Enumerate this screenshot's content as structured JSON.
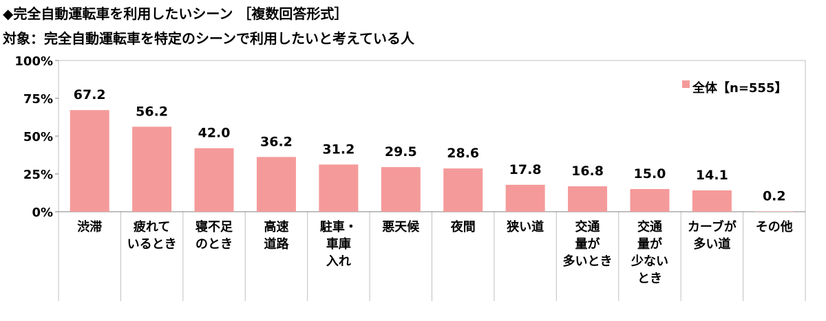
{
  "header": {
    "title": "◆完全自動運転車を利用したいシーン ［複数回答形式］",
    "subtitle": "対象：完全自動運転車を特定のシーンで利用したいと考えている人"
  },
  "chart_data": {
    "type": "bar",
    "categories": [
      [
        "渋滞"
      ],
      [
        "疲れて",
        "いるとき"
      ],
      [
        "寝不足",
        "のとき"
      ],
      [
        "高速",
        "道路"
      ],
      [
        "駐車・",
        "車庫",
        "入れ"
      ],
      [
        "悪天候"
      ],
      [
        "夜間"
      ],
      [
        "狭い道"
      ],
      [
        "交通",
        "量が",
        "多いとき"
      ],
      [
        "交通",
        "量が",
        "少ない",
        "とき"
      ],
      [
        "カーブが",
        "多い道"
      ],
      [
        "その他"
      ]
    ],
    "series": [
      {
        "name": "全体【n=555】",
        "values": [
          67.2,
          56.2,
          42.0,
          36.2,
          31.2,
          29.5,
          28.6,
          17.8,
          16.8,
          15.0,
          14.1,
          0.2
        ]
      }
    ],
    "data_labels": [
      "67.2",
      "56.2",
      "42.0",
      "36.2",
      "31.2",
      "29.5",
      "28.6",
      "17.8",
      "16.8",
      "15.0",
      "14.1",
      "0.2"
    ],
    "y_ticks": [
      "0%",
      "25%",
      "50%",
      "75%",
      "100%"
    ],
    "ylim": [
      0,
      100
    ],
    "grid": false,
    "legend_position": "top-right",
    "bar_color": "#f59a9a"
  }
}
